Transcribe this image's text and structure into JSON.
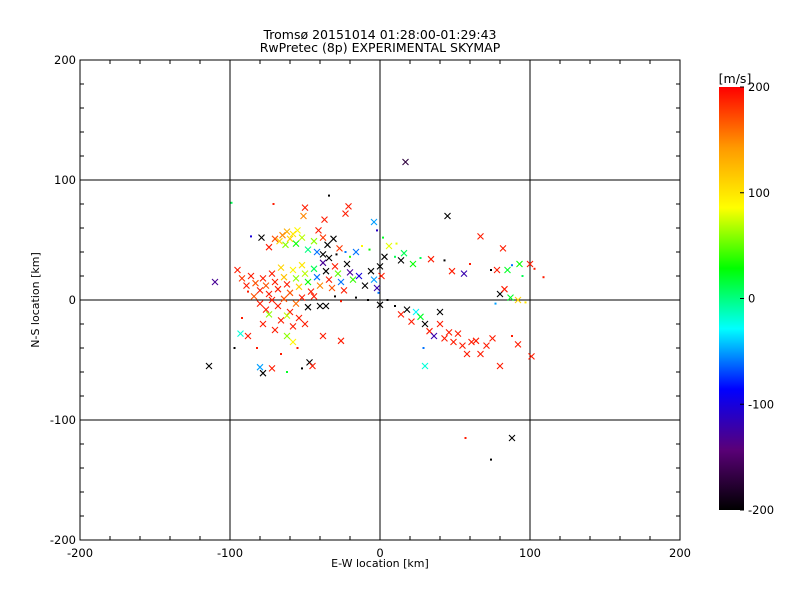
{
  "chart_data": {
    "type": "scatter",
    "title": "Tromsø 20151014 01:28:00-01:29:43",
    "subtitle": "RwPretec (8p) EXPERIMENTAL SKYMAP",
    "xlabel": "E-W location [km]",
    "ylabel": "N-S location [km]",
    "xlim": [
      -200,
      200
    ],
    "ylim": [
      -200,
      200
    ],
    "xticks": [
      "-200",
      "-100",
      "0",
      "100",
      "200"
    ],
    "yticks": [
      "-200",
      "-100",
      "0",
      "100",
      "200"
    ],
    "grid": true,
    "colorbar": {
      "label": "[m/s]",
      "range": [
        -200,
        200
      ],
      "ticks": [
        "-200",
        "-100",
        "0",
        "100",
        "200"
      ],
      "colors": [
        "#000000",
        "#5a0078",
        "#0000ff",
        "#00ffff",
        "#00ff00",
        "#ffff00",
        "#ff9900",
        "#ff0000"
      ]
    },
    "points": [
      {
        "x": 17,
        "y": 115,
        "v": -170,
        "m": "x"
      },
      {
        "x": -34,
        "y": 87,
        "v": -200,
        "m": "d"
      },
      {
        "x": 45,
        "y": 70,
        "v": -200,
        "m": "x"
      },
      {
        "x": -71,
        "y": 80,
        "v": 190,
        "m": "d"
      },
      {
        "x": -50,
        "y": 77,
        "v": 190,
        "m": "x"
      },
      {
        "x": -21,
        "y": 78,
        "v": 190,
        "m": "x"
      },
      {
        "x": -23,
        "y": 72,
        "v": 190,
        "m": "x"
      },
      {
        "x": -37,
        "y": 67,
        "v": 190,
        "m": "x"
      },
      {
        "x": -99,
        "y": 81,
        "v": 10,
        "m": "d"
      },
      {
        "x": -51,
        "y": 70,
        "v": 150,
        "m": "x"
      },
      {
        "x": -55,
        "y": 58,
        "v": 90,
        "m": "x"
      },
      {
        "x": -58,
        "y": 55,
        "v": 100,
        "m": "x"
      },
      {
        "x": -60,
        "y": 51,
        "v": 110,
        "m": "x"
      },
      {
        "x": -62,
        "y": 57,
        "v": 130,
        "m": "x"
      },
      {
        "x": -65,
        "y": 54,
        "v": 150,
        "m": "x"
      },
      {
        "x": -67,
        "y": 49,
        "v": 110,
        "m": "x"
      },
      {
        "x": -63,
        "y": 46,
        "v": 60,
        "m": "x"
      },
      {
        "x": -56,
        "y": 47,
        "v": 30,
        "m": "x"
      },
      {
        "x": -52,
        "y": 52,
        "v": 70,
        "m": "x"
      },
      {
        "x": -70,
        "y": 51,
        "v": 170,
        "m": "x"
      },
      {
        "x": -74,
        "y": 44,
        "v": 190,
        "m": "x"
      },
      {
        "x": -79,
        "y": 52,
        "v": -200,
        "m": "x"
      },
      {
        "x": -86,
        "y": 53,
        "v": -100,
        "m": "d"
      },
      {
        "x": -41,
        "y": 58,
        "v": 190,
        "m": "x"
      },
      {
        "x": -38,
        "y": 52,
        "v": 180,
        "m": "x"
      },
      {
        "x": -35,
        "y": 46,
        "v": -200,
        "m": "x"
      },
      {
        "x": -31,
        "y": 51,
        "v": -200,
        "m": "x"
      },
      {
        "x": -44,
        "y": 49,
        "v": 60,
        "m": "x"
      },
      {
        "x": -48,
        "y": 42,
        "v": 0,
        "m": "x"
      },
      {
        "x": -42,
        "y": 40,
        "v": -60,
        "m": "x"
      },
      {
        "x": -38,
        "y": 38,
        "v": -200,
        "m": "x"
      },
      {
        "x": -34,
        "y": 35,
        "v": -200,
        "m": "x"
      },
      {
        "x": -29,
        "y": 38,
        "v": -200,
        "m": "d"
      },
      {
        "x": -27,
        "y": 43,
        "v": 180,
        "m": "x"
      },
      {
        "x": -23,
        "y": 40,
        "v": -60,
        "m": "d"
      },
      {
        "x": -20,
        "y": 36,
        "v": 40,
        "m": "d"
      },
      {
        "x": -16,
        "y": 40,
        "v": -60,
        "m": "x"
      },
      {
        "x": -12,
        "y": 45,
        "v": 90,
        "m": "d"
      },
      {
        "x": -7,
        "y": 42,
        "v": 30,
        "m": "d"
      },
      {
        "x": -4,
        "y": 65,
        "v": -50,
        "m": "x"
      },
      {
        "x": -2,
        "y": 58,
        "v": -110,
        "m": "d"
      },
      {
        "x": 2,
        "y": 52,
        "v": 20,
        "m": "d"
      },
      {
        "x": 6,
        "y": 45,
        "v": 80,
        "m": "x"
      },
      {
        "x": 11,
        "y": 47,
        "v": 80,
        "m": "d"
      },
      {
        "x": 16,
        "y": 39,
        "v": 10,
        "m": "x"
      },
      {
        "x": 22,
        "y": 30,
        "v": 30,
        "m": "x"
      },
      {
        "x": 27,
        "y": 35,
        "v": 10,
        "m": "d"
      },
      {
        "x": 34,
        "y": 34,
        "v": 190,
        "m": "x"
      },
      {
        "x": 43,
        "y": 33,
        "v": -200,
        "m": "d"
      },
      {
        "x": 48,
        "y": 24,
        "v": 190,
        "m": "x"
      },
      {
        "x": 56,
        "y": 22,
        "v": -120,
        "m": "x"
      },
      {
        "x": 60,
        "y": 30,
        "v": 190,
        "m": "d"
      },
      {
        "x": 67,
        "y": 53,
        "v": 190,
        "m": "x"
      },
      {
        "x": 74,
        "y": 25,
        "v": -200,
        "m": "d"
      },
      {
        "x": 78,
        "y": 25,
        "v": 190,
        "m": "x"
      },
      {
        "x": 82,
        "y": 43,
        "v": 190,
        "m": "x"
      },
      {
        "x": 85,
        "y": 25,
        "v": 20,
        "m": "x"
      },
      {
        "x": 88,
        "y": 29,
        "v": -60,
        "m": "d"
      },
      {
        "x": 93,
        "y": 30,
        "v": 30,
        "m": "x"
      },
      {
        "x": 95,
        "y": 20,
        "v": 10,
        "m": "d"
      },
      {
        "x": 100,
        "y": 30,
        "v": 190,
        "m": "x"
      },
      {
        "x": 103,
        "y": 26,
        "v": 190,
        "m": "d"
      },
      {
        "x": 109,
        "y": 19,
        "v": 190,
        "m": "d"
      },
      {
        "x": 80,
        "y": 5,
        "v": -200,
        "m": "x"
      },
      {
        "x": 83,
        "y": 9,
        "v": 190,
        "m": "x"
      },
      {
        "x": 87,
        "y": 2,
        "v": 20,
        "m": "x"
      },
      {
        "x": 92,
        "y": 0,
        "v": 110,
        "m": "x"
      },
      {
        "x": 97,
        "y": -2,
        "v": 100,
        "m": "d"
      },
      {
        "x": 77,
        "y": -3,
        "v": -50,
        "m": "d"
      },
      {
        "x": -110,
        "y": 15,
        "v": -130,
        "m": "x"
      },
      {
        "x": -95,
        "y": 25,
        "v": 190,
        "m": "x"
      },
      {
        "x": -92,
        "y": 18,
        "v": 180,
        "m": "x"
      },
      {
        "x": -89,
        "y": 12,
        "v": 190,
        "m": "x"
      },
      {
        "x": -86,
        "y": 20,
        "v": 190,
        "m": "x"
      },
      {
        "x": -83,
        "y": 14,
        "v": 170,
        "m": "x"
      },
      {
        "x": -80,
        "y": 8,
        "v": 190,
        "m": "x"
      },
      {
        "x": -78,
        "y": 18,
        "v": 190,
        "m": "x"
      },
      {
        "x": -76,
        "y": 12,
        "v": 170,
        "m": "x"
      },
      {
        "x": -74,
        "y": 5,
        "v": 190,
        "m": "x"
      },
      {
        "x": -72,
        "y": 22,
        "v": 190,
        "m": "x"
      },
      {
        "x": -70,
        "y": 15,
        "v": 190,
        "m": "x"
      },
      {
        "x": -68,
        "y": 9,
        "v": 190,
        "m": "x"
      },
      {
        "x": -66,
        "y": 27,
        "v": 110,
        "m": "x"
      },
      {
        "x": -64,
        "y": 19,
        "v": 120,
        "m": "x"
      },
      {
        "x": -62,
        "y": 13,
        "v": 190,
        "m": "x"
      },
      {
        "x": -60,
        "y": 6,
        "v": 170,
        "m": "x"
      },
      {
        "x": -58,
        "y": 25,
        "v": 90,
        "m": "x"
      },
      {
        "x": -56,
        "y": 18,
        "v": 60,
        "m": "x"
      },
      {
        "x": -54,
        "y": 11,
        "v": 110,
        "m": "x"
      },
      {
        "x": -52,
        "y": 29,
        "v": 100,
        "m": "x"
      },
      {
        "x": -50,
        "y": 22,
        "v": 70,
        "m": "x"
      },
      {
        "x": -48,
        "y": 15,
        "v": 30,
        "m": "x"
      },
      {
        "x": -46,
        "y": 7,
        "v": 190,
        "m": "x"
      },
      {
        "x": -44,
        "y": 26,
        "v": 10,
        "m": "x"
      },
      {
        "x": -42,
        "y": 19,
        "v": -60,
        "m": "x"
      },
      {
        "x": -40,
        "y": 12,
        "v": 150,
        "m": "x"
      },
      {
        "x": -38,
        "y": 31,
        "v": -130,
        "m": "x"
      },
      {
        "x": -36,
        "y": 24,
        "v": -200,
        "m": "x"
      },
      {
        "x": -34,
        "y": 17,
        "v": 190,
        "m": "x"
      },
      {
        "x": -32,
        "y": 10,
        "v": 170,
        "m": "x"
      },
      {
        "x": -30,
        "y": 28,
        "v": 190,
        "m": "x"
      },
      {
        "x": -28,
        "y": 22,
        "v": 50,
        "m": "x"
      },
      {
        "x": -26,
        "y": 15,
        "v": -60,
        "m": "x"
      },
      {
        "x": -24,
        "y": 8,
        "v": 190,
        "m": "x"
      },
      {
        "x": -22,
        "y": 30,
        "v": -200,
        "m": "x"
      },
      {
        "x": -20,
        "y": 23,
        "v": -130,
        "m": "x"
      },
      {
        "x": -18,
        "y": 17,
        "v": 40,
        "m": "x"
      },
      {
        "x": -14,
        "y": 20,
        "v": -100,
        "m": "x"
      },
      {
        "x": -10,
        "y": 12,
        "v": -200,
        "m": "x"
      },
      {
        "x": -6,
        "y": 24,
        "v": -200,
        "m": "x"
      },
      {
        "x": -4,
        "y": 17,
        "v": -50,
        "m": "x"
      },
      {
        "x": -2,
        "y": 10,
        "v": -120,
        "m": "x"
      },
      {
        "x": 0,
        "y": 28,
        "v": -200,
        "m": "x"
      },
      {
        "x": 1,
        "y": 20,
        "v": 190,
        "m": "x"
      },
      {
        "x": 3,
        "y": 36,
        "v": -200,
        "m": "x"
      },
      {
        "x": -1,
        "y": 6,
        "v": -60,
        "m": "d"
      },
      {
        "x": 10,
        "y": 36,
        "v": 10,
        "m": "d"
      },
      {
        "x": 14,
        "y": 33,
        "v": -200,
        "m": "x"
      },
      {
        "x": -88,
        "y": 7,
        "v": 190,
        "m": "d"
      },
      {
        "x": -84,
        "y": 3,
        "v": 170,
        "m": "x"
      },
      {
        "x": -80,
        "y": -3,
        "v": 190,
        "m": "x"
      },
      {
        "x": -76,
        "y": -8,
        "v": 190,
        "m": "x"
      },
      {
        "x": -72,
        "y": 0,
        "v": 190,
        "m": "x"
      },
      {
        "x": -68,
        "y": -5,
        "v": 190,
        "m": "x"
      },
      {
        "x": -64,
        "y": 1,
        "v": 170,
        "m": "x"
      },
      {
        "x": -60,
        "y": -10,
        "v": 190,
        "m": "x"
      },
      {
        "x": -56,
        "y": -3,
        "v": 160,
        "m": "x"
      },
      {
        "x": -52,
        "y": 2,
        "v": 190,
        "m": "x"
      },
      {
        "x": -48,
        "y": -6,
        "v": -200,
        "m": "x"
      },
      {
        "x": -44,
        "y": 3,
        "v": 190,
        "m": "x"
      },
      {
        "x": -40,
        "y": -5,
        "v": -200,
        "m": "x"
      },
      {
        "x": -36,
        "y": -5,
        "v": -200,
        "m": "x"
      },
      {
        "x": -30,
        "y": 3,
        "v": -200,
        "m": "d"
      },
      {
        "x": -26,
        "y": -1,
        "v": 190,
        "m": "d"
      },
      {
        "x": -16,
        "y": 2,
        "v": -200,
        "m": "d"
      },
      {
        "x": -8,
        "y": 0,
        "v": -200,
        "m": "d"
      },
      {
        "x": -78,
        "y": -20,
        "v": 190,
        "m": "x"
      },
      {
        "x": -74,
        "y": -12,
        "v": 60,
        "m": "x"
      },
      {
        "x": -70,
        "y": -25,
        "v": 190,
        "m": "x"
      },
      {
        "x": -66,
        "y": -17,
        "v": 190,
        "m": "x"
      },
      {
        "x": -62,
        "y": -13,
        "v": 70,
        "m": "x"
      },
      {
        "x": -58,
        "y": -22,
        "v": 190,
        "m": "x"
      },
      {
        "x": -54,
        "y": -15,
        "v": 190,
        "m": "x"
      },
      {
        "x": -50,
        "y": -20,
        "v": 190,
        "m": "x"
      },
      {
        "x": -58,
        "y": -35,
        "v": 90,
        "m": "x"
      },
      {
        "x": -62,
        "y": -30,
        "v": 60,
        "m": "x"
      },
      {
        "x": -55,
        "y": -40,
        "v": 190,
        "m": "d"
      },
      {
        "x": -66,
        "y": -45,
        "v": 190,
        "m": "d"
      },
      {
        "x": -92,
        "y": -15,
        "v": 190,
        "m": "d"
      },
      {
        "x": -97,
        "y": -40,
        "v": -200,
        "m": "d"
      },
      {
        "x": -93,
        "y": -28,
        "v": -20,
        "m": "x"
      },
      {
        "x": -88,
        "y": -30,
        "v": 190,
        "m": "x"
      },
      {
        "x": -82,
        "y": -40,
        "v": 190,
        "m": "d"
      },
      {
        "x": -80,
        "y": -56,
        "v": -50,
        "m": "x"
      },
      {
        "x": -78,
        "y": -61,
        "v": -200,
        "m": "x"
      },
      {
        "x": -114,
        "y": -55,
        "v": -200,
        "m": "x"
      },
      {
        "x": -72,
        "y": -57,
        "v": 190,
        "m": "x"
      },
      {
        "x": -62,
        "y": -60,
        "v": 20,
        "m": "d"
      },
      {
        "x": -47,
        "y": -52,
        "v": -200,
        "m": "x"
      },
      {
        "x": -52,
        "y": -57,
        "v": -200,
        "m": "d"
      },
      {
        "x": -45,
        "y": -55,
        "v": 190,
        "m": "x"
      },
      {
        "x": -38,
        "y": -30,
        "v": 190,
        "m": "x"
      },
      {
        "x": -26,
        "y": -34,
        "v": 190,
        "m": "x"
      },
      {
        "x": 0,
        "y": -4,
        "v": -200,
        "m": "x"
      },
      {
        "x": 5,
        "y": 0,
        "v": -200,
        "m": "d"
      },
      {
        "x": 10,
        "y": -5,
        "v": -200,
        "m": "d"
      },
      {
        "x": 14,
        "y": -12,
        "v": 190,
        "m": "x"
      },
      {
        "x": 18,
        "y": -8,
        "v": -200,
        "m": "x"
      },
      {
        "x": 21,
        "y": -18,
        "v": 190,
        "m": "x"
      },
      {
        "x": 24,
        "y": -10,
        "v": -30,
        "m": "x"
      },
      {
        "x": 27,
        "y": -14,
        "v": 20,
        "m": "x"
      },
      {
        "x": 30,
        "y": -20,
        "v": -200,
        "m": "x"
      },
      {
        "x": 33,
        "y": -26,
        "v": 190,
        "m": "x"
      },
      {
        "x": 36,
        "y": -30,
        "v": -120,
        "m": "x"
      },
      {
        "x": 40,
        "y": -20,
        "v": 190,
        "m": "x"
      },
      {
        "x": 43,
        "y": -32,
        "v": 190,
        "m": "x"
      },
      {
        "x": 46,
        "y": -27,
        "v": 190,
        "m": "x"
      },
      {
        "x": 49,
        "y": -35,
        "v": 190,
        "m": "x"
      },
      {
        "x": 52,
        "y": -28,
        "v": 190,
        "m": "x"
      },
      {
        "x": 55,
        "y": -38,
        "v": 190,
        "m": "x"
      },
      {
        "x": 58,
        "y": -45,
        "v": 190,
        "m": "x"
      },
      {
        "x": 61,
        "y": -35,
        "v": 190,
        "m": "x"
      },
      {
        "x": 64,
        "y": -34,
        "v": 190,
        "m": "x"
      },
      {
        "x": 67,
        "y": -45,
        "v": 190,
        "m": "x"
      },
      {
        "x": 71,
        "y": -38,
        "v": 190,
        "m": "x"
      },
      {
        "x": 75,
        "y": -32,
        "v": 190,
        "m": "x"
      },
      {
        "x": 80,
        "y": -55,
        "v": 190,
        "m": "x"
      },
      {
        "x": 88,
        "y": -30,
        "v": 190,
        "m": "d"
      },
      {
        "x": 92,
        "y": -37,
        "v": 190,
        "m": "x"
      },
      {
        "x": 40,
        "y": -10,
        "v": -200,
        "m": "x"
      },
      {
        "x": 29,
        "y": -40,
        "v": -60,
        "m": "d"
      },
      {
        "x": 30,
        "y": -55,
        "v": -20,
        "m": "x"
      },
      {
        "x": 101,
        "y": -47,
        "v": 190,
        "m": "x"
      },
      {
        "x": 57,
        "y": -115,
        "v": 190,
        "m": "d"
      },
      {
        "x": 88,
        "y": -115,
        "v": -200,
        "m": "x"
      },
      {
        "x": 74,
        "y": -133,
        "v": -200,
        "m": "d"
      }
    ]
  }
}
